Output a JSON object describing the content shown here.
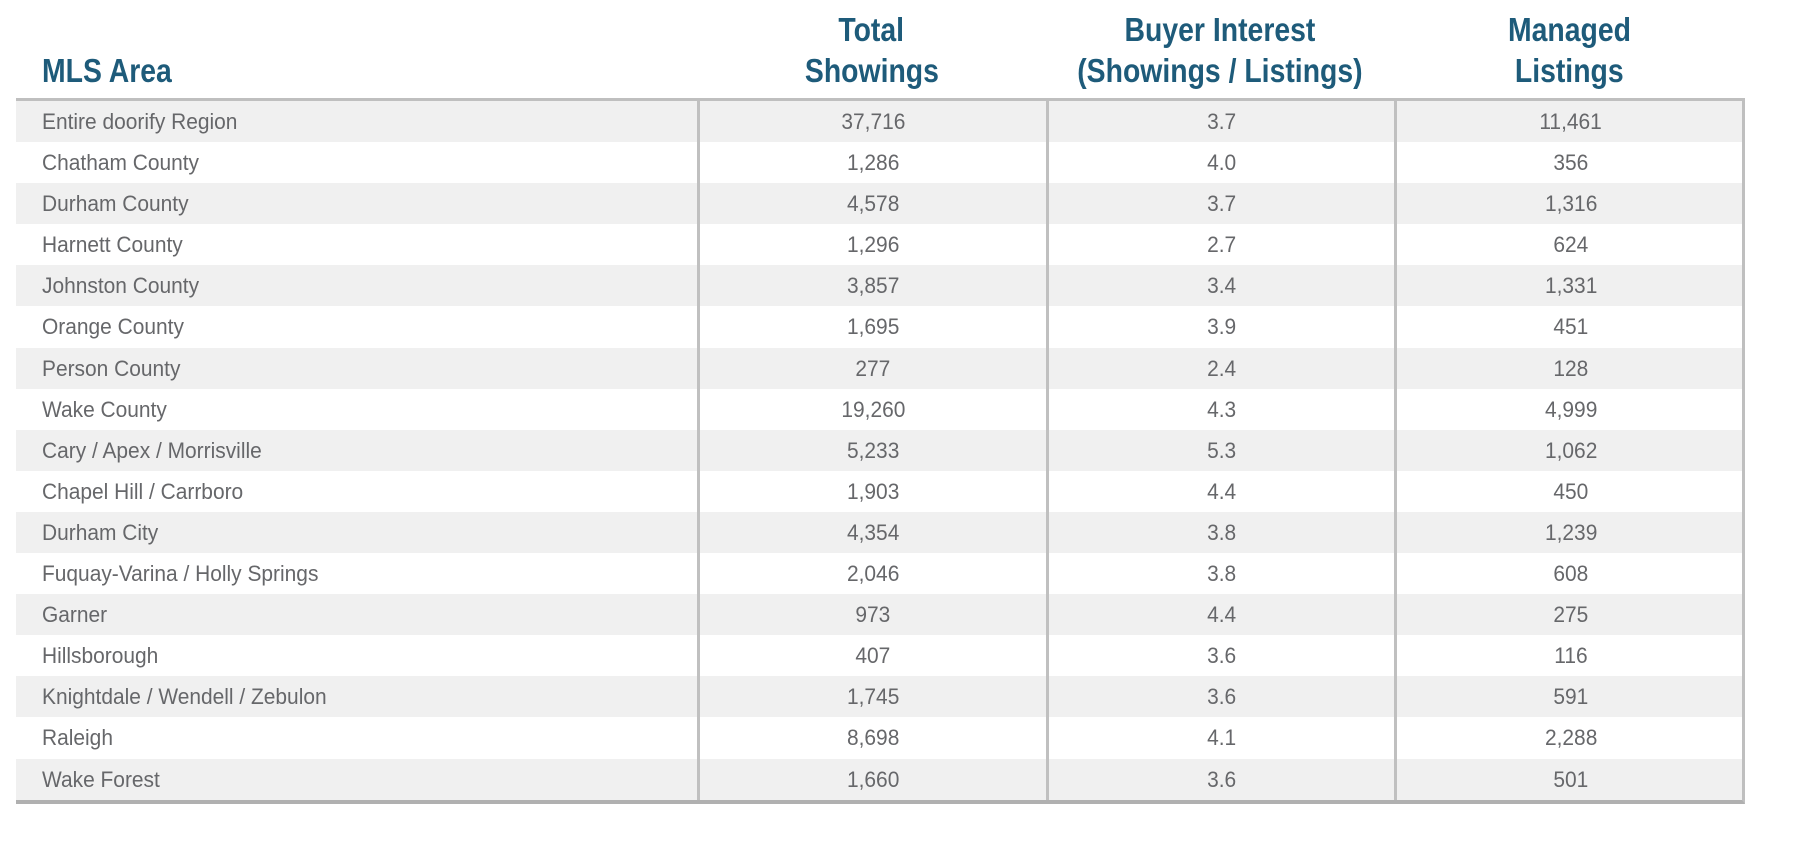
{
  "table": {
    "header": {
      "col1": "MLS Area",
      "col2_line1": "Total",
      "col2_line2": "Showings",
      "col3_line1": "Buyer Interest",
      "col3_line2": "(Showings / Listings)",
      "col4_line1": "Managed",
      "col4_line2": "Listings"
    },
    "columns": [
      "MLS Area",
      "Total Showings",
      "Buyer Interest (Showings / Listings)",
      "Managed Listings"
    ],
    "rows": [
      {
        "area": "Entire doorify Region",
        "total_showings": "37,716",
        "buyer_interest": "3.7",
        "managed_listings": "11,461"
      },
      {
        "area": "Chatham County",
        "total_showings": "1,286",
        "buyer_interest": "4.0",
        "managed_listings": "356"
      },
      {
        "area": "Durham County",
        "total_showings": "4,578",
        "buyer_interest": "3.7",
        "managed_listings": "1,316"
      },
      {
        "area": "Harnett County",
        "total_showings": "1,296",
        "buyer_interest": "2.7",
        "managed_listings": "624"
      },
      {
        "area": "Johnston County",
        "total_showings": "3,857",
        "buyer_interest": "3.4",
        "managed_listings": "1,331"
      },
      {
        "area": "Orange County",
        "total_showings": "1,695",
        "buyer_interest": "3.9",
        "managed_listings": "451"
      },
      {
        "area": "Person County",
        "total_showings": "277",
        "buyer_interest": "2.4",
        "managed_listings": "128"
      },
      {
        "area": "Wake County",
        "total_showings": "19,260",
        "buyer_interest": "4.3",
        "managed_listings": "4,999"
      },
      {
        "area": "Cary / Apex / Morrisville",
        "total_showings": "5,233",
        "buyer_interest": "5.3",
        "managed_listings": "1,062"
      },
      {
        "area": "Chapel Hill / Carrboro",
        "total_showings": "1,903",
        "buyer_interest": "4.4",
        "managed_listings": "450"
      },
      {
        "area": "Durham City",
        "total_showings": "4,354",
        "buyer_interest": "3.8",
        "managed_listings": "1,239"
      },
      {
        "area": "Fuquay-Varina / Holly Springs",
        "total_showings": "2,046",
        "buyer_interest": "3.8",
        "managed_listings": "608"
      },
      {
        "area": "Garner",
        "total_showings": "973",
        "buyer_interest": "4.4",
        "managed_listings": "275"
      },
      {
        "area": "Hillsborough",
        "total_showings": "407",
        "buyer_interest": "3.6",
        "managed_listings": "116"
      },
      {
        "area": "Knightdale / Wendell / Zebulon",
        "total_showings": "1,745",
        "buyer_interest": "3.6",
        "managed_listings": "591"
      },
      {
        "area": "Raleigh",
        "total_showings": "8,698",
        "buyer_interest": "4.1",
        "managed_listings": "2,288"
      },
      {
        "area": "Wake Forest",
        "total_showings": "1,660",
        "buyer_interest": "3.6",
        "managed_listings": "501"
      }
    ]
  },
  "colors": {
    "header_text": "#1e5b7a",
    "body_text": "#66676a",
    "row_stripe": "#f0f0f0",
    "grid_line": "#c0c0c0"
  }
}
